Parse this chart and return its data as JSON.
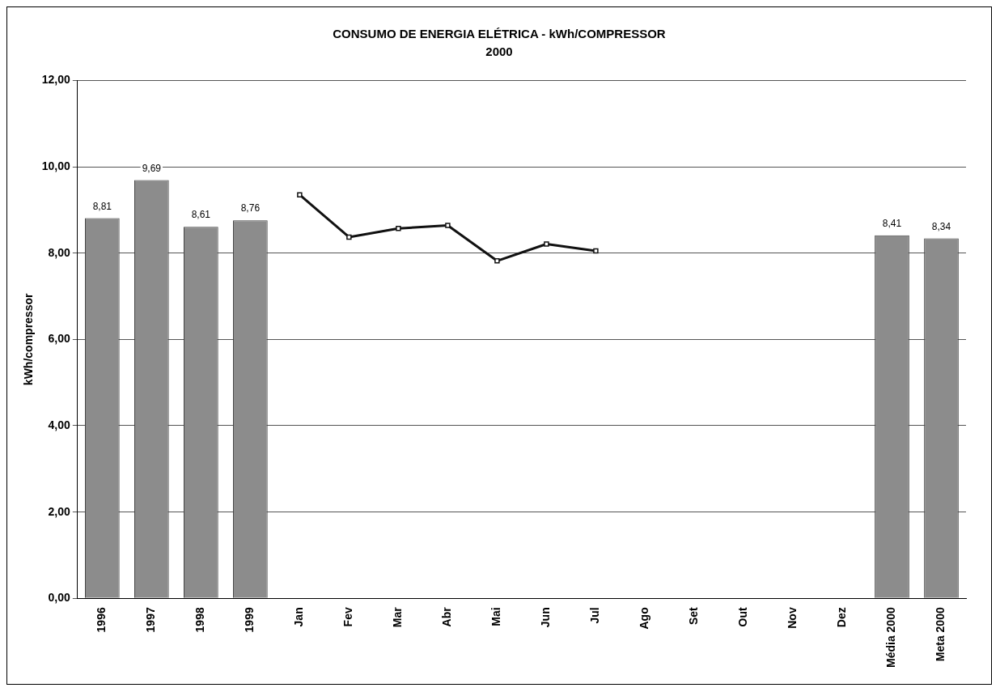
{
  "chart_data": {
    "type": "bar",
    "title": "CONSUMO DE ENERGIA ELÉTRICA - kWh/COMPRESSOR",
    "subtitle": "2000",
    "ylabel": "kWh/compressor",
    "categories": [
      "1996",
      "1997",
      "1998",
      "1999",
      "Jan",
      "Fev",
      "Mar",
      "Abr",
      "Mai",
      "Jun",
      "Jul",
      "Ago",
      "Set",
      "Out",
      "Nov",
      "Dez",
      "Média 2000",
      "Meta 2000"
    ],
    "series": [
      {
        "color": "#8c8c8c",
        "values": [
          8.81,
          9.69,
          8.61,
          8.76,
          null,
          null,
          null,
          null,
          null,
          null,
          null,
          null,
          null,
          null,
          null,
          null,
          8.41,
          8.34
        ],
        "value_labels": [
          "8,81",
          "9,69",
          "8,61",
          "8,76",
          null,
          null,
          null,
          null,
          null,
          null,
          null,
          null,
          null,
          null,
          null,
          null,
          "8,41",
          "8,34"
        ]
      },
      {
        "type": "line",
        "color": "#111111",
        "marker": "square",
        "values": [
          null,
          null,
          null,
          null,
          9.35,
          8.37,
          8.57,
          8.64,
          7.82,
          8.21,
          8.05,
          null,
          null,
          null,
          null,
          null,
          null,
          null
        ]
      }
    ],
    "ylim": [
      0,
      12
    ],
    "yticks": [
      {
        "value": 0,
        "label": "0,00"
      },
      {
        "value": 2,
        "label": "2,00"
      },
      {
        "value": 4,
        "label": "4,00"
      },
      {
        "value": 6,
        "label": "6,00"
      },
      {
        "value": 8,
        "label": "8,00"
      },
      {
        "value": 10,
        "label": "10,00"
      },
      {
        "value": 12,
        "label": "12,00"
      }
    ],
    "grid": "y"
  }
}
